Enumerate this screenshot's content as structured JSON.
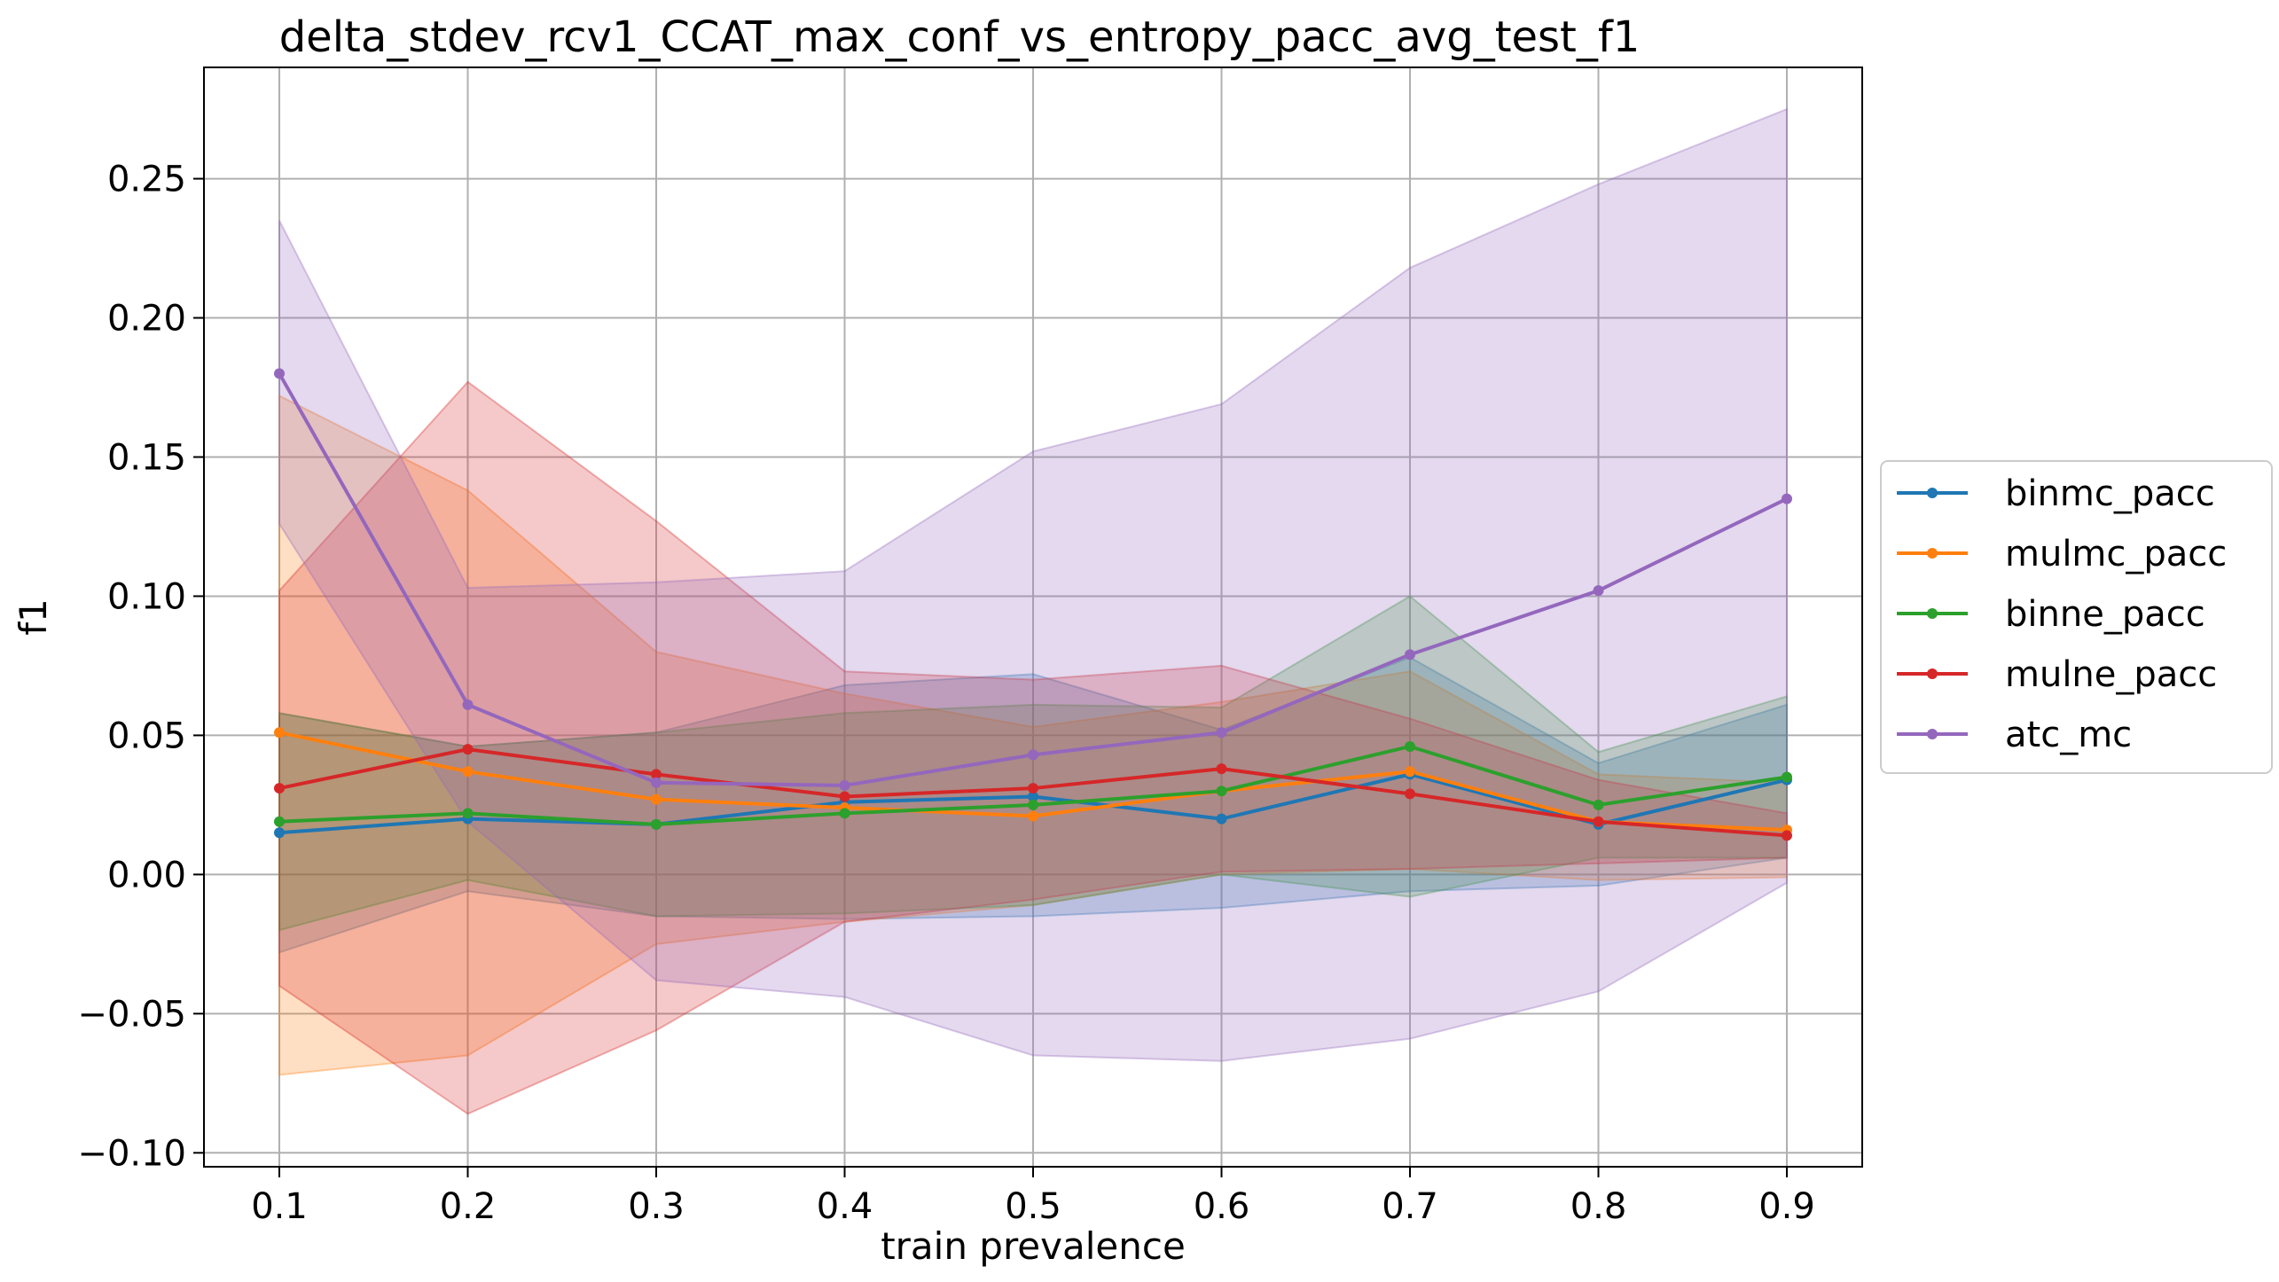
{
  "chart_data": {
    "type": "line",
    "title": "delta_stdev_rcv1_CCAT_max_conf_vs_entropy_pacc_avg_test_f1",
    "xlabel": "train prevalence",
    "ylabel": "f1",
    "x": [
      0.1,
      0.2,
      0.3,
      0.4,
      0.5,
      0.6,
      0.7,
      0.8,
      0.9
    ],
    "x_ticks": [
      "0.1",
      "0.2",
      "0.3",
      "0.4",
      "0.5",
      "0.6",
      "0.7",
      "0.8",
      "0.9"
    ],
    "xlim": [
      0.06,
      0.94
    ],
    "ylim": [
      -0.105,
      0.29
    ],
    "y_ticks": [
      -0.1,
      -0.05,
      0.0,
      0.05,
      0.1,
      0.15,
      0.2,
      0.25
    ],
    "y_tick_labels": [
      "−0.10",
      "−0.05",
      "0.00",
      "0.05",
      "0.10",
      "0.15",
      "0.20",
      "0.25"
    ],
    "grid": true,
    "legend_position": "outside-right",
    "series": [
      {
        "name": "binmc_pacc",
        "color": "#1f77b4",
        "values": [
          0.015,
          0.02,
          0.018,
          0.026,
          0.028,
          0.02,
          0.036,
          0.018,
          0.034
        ],
        "upper": [
          0.058,
          0.046,
          0.051,
          0.068,
          0.072,
          0.052,
          0.078,
          0.04,
          0.061
        ],
        "lower": [
          -0.028,
          -0.006,
          -0.015,
          -0.016,
          -0.015,
          -0.012,
          -0.006,
          -0.004,
          0.006
        ]
      },
      {
        "name": "mulmc_pacc",
        "color": "#ff7f0e",
        "values": [
          0.051,
          0.037,
          0.027,
          0.024,
          0.021,
          0.03,
          0.037,
          0.019,
          0.016
        ],
        "upper": [
          0.172,
          0.138,
          0.08,
          0.065,
          0.053,
          0.062,
          0.073,
          0.036,
          0.033
        ],
        "lower": [
          -0.072,
          -0.065,
          -0.025,
          -0.017,
          -0.011,
          0.0,
          0.002,
          -0.002,
          -0.001
        ]
      },
      {
        "name": "binne_pacc",
        "color": "#2ca02c",
        "values": [
          0.019,
          0.022,
          0.018,
          0.022,
          0.025,
          0.03,
          0.046,
          0.025,
          0.035
        ],
        "upper": [
          0.058,
          0.046,
          0.051,
          0.058,
          0.061,
          0.06,
          0.1,
          0.044,
          0.064
        ],
        "lower": [
          -0.02,
          -0.002,
          -0.015,
          -0.014,
          -0.011,
          0.0,
          -0.008,
          0.006,
          0.006
        ]
      },
      {
        "name": "mulne_pacc",
        "color": "#d62728",
        "values": [
          0.031,
          0.045,
          0.036,
          0.028,
          0.031,
          0.038,
          0.029,
          0.019,
          0.014
        ],
        "upper": [
          0.102,
          0.177,
          0.127,
          0.073,
          0.07,
          0.075,
          0.056,
          0.034,
          0.022
        ],
        "lower": [
          -0.04,
          -0.086,
          -0.056,
          -0.017,
          -0.009,
          0.001,
          0.002,
          0.004,
          0.006
        ]
      },
      {
        "name": "atc_mc",
        "color": "#9467bd",
        "values": [
          0.18,
          0.061,
          0.033,
          0.032,
          0.043,
          0.051,
          0.079,
          0.102,
          0.135
        ],
        "upper": [
          0.235,
          0.103,
          0.105,
          0.109,
          0.152,
          0.169,
          0.218,
          0.248,
          0.275
        ],
        "lower": [
          0.126,
          0.019,
          -0.038,
          -0.044,
          -0.065,
          -0.067,
          -0.059,
          -0.042,
          -0.003
        ]
      }
    ]
  }
}
